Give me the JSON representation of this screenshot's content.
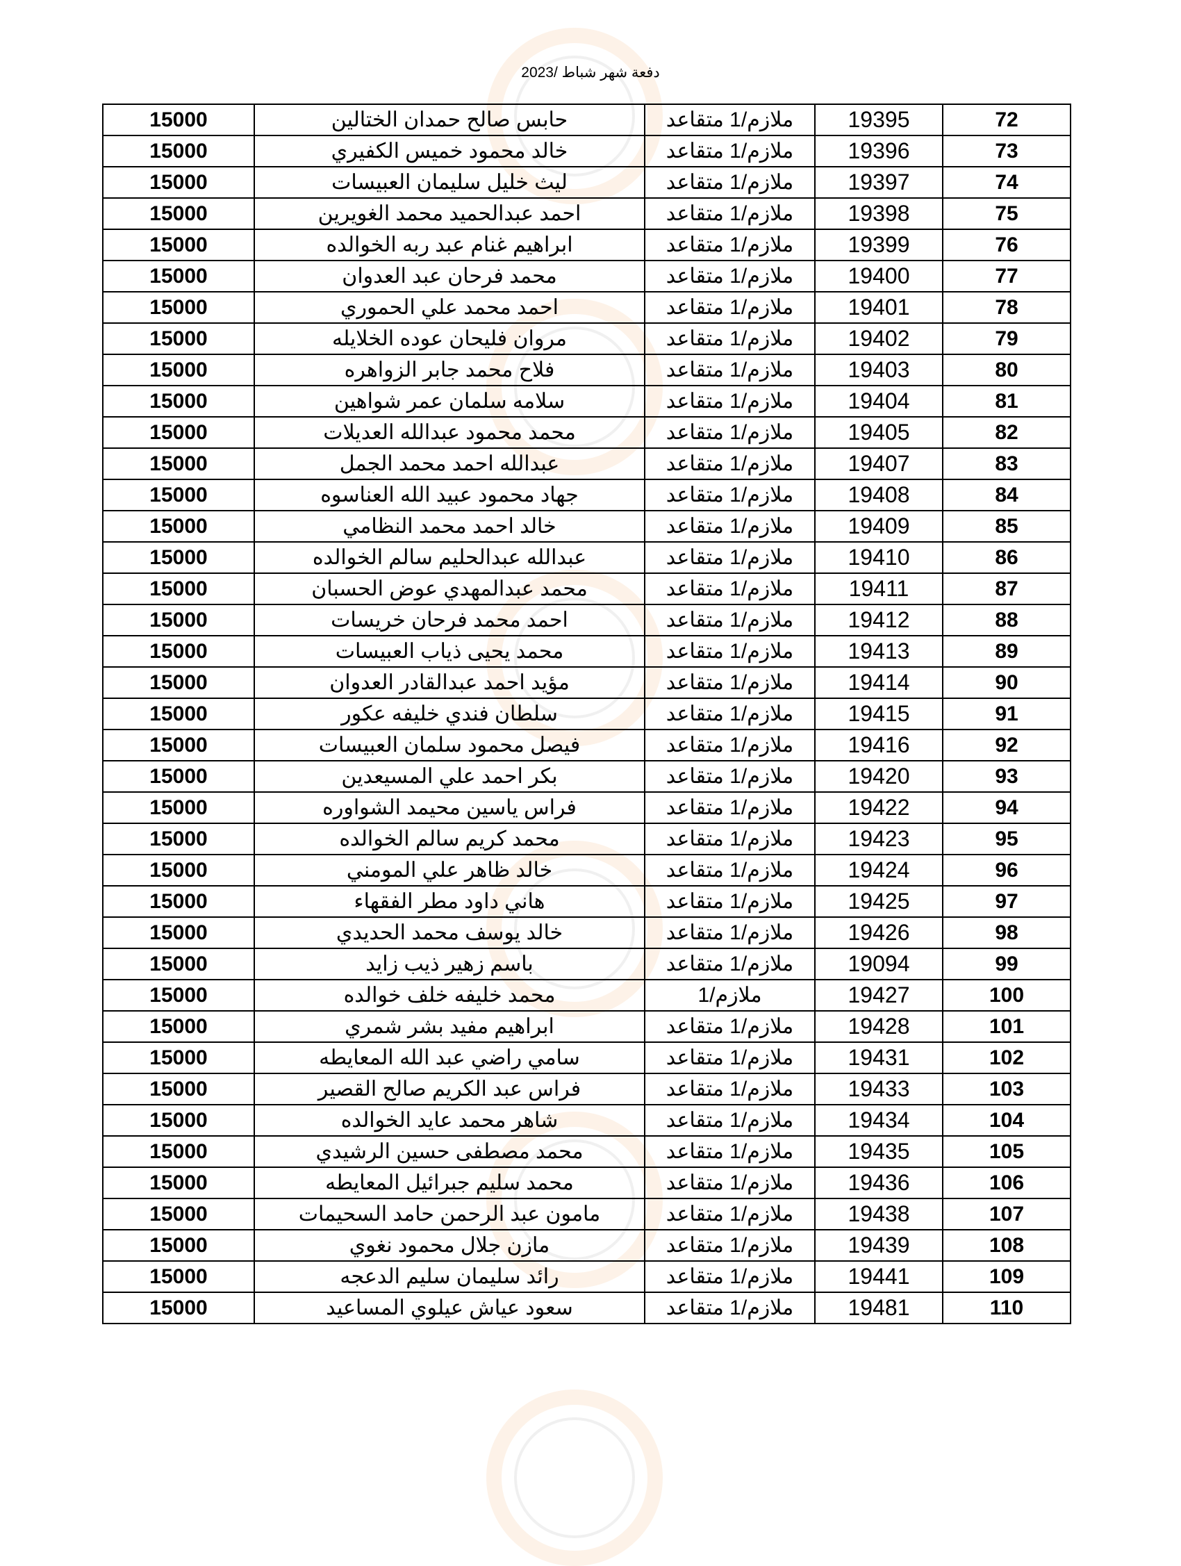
{
  "title": "دفعة شهر شباط /2023",
  "rows": [
    {
      "n": "72",
      "id": "19395",
      "rank": "ملازم/1 متقاعد",
      "name": "حابس صالح حمدان الختالين",
      "amount": "15000"
    },
    {
      "n": "73",
      "id": "19396",
      "rank": "ملازم/1 متقاعد",
      "name": "خالد محمود خميس الكفيري",
      "amount": "15000"
    },
    {
      "n": "74",
      "id": "19397",
      "rank": "ملازم/1 متقاعد",
      "name": "ليث خليل سليمان العبيسات",
      "amount": "15000"
    },
    {
      "n": "75",
      "id": "19398",
      "rank": "ملازم/1 متقاعد",
      "name": "احمد عبدالحميد محمد الغويرين",
      "amount": "15000"
    },
    {
      "n": "76",
      "id": "19399",
      "rank": "ملازم/1 متقاعد",
      "name": "ابراهيم غنام عبد ربه الخوالده",
      "amount": "15000"
    },
    {
      "n": "77",
      "id": "19400",
      "rank": "ملازم/1 متقاعد",
      "name": "محمد فرحان عبد العدوان",
      "amount": "15000"
    },
    {
      "n": "78",
      "id": "19401",
      "rank": "ملازم/1 متقاعد",
      "name": "احمد محمد علي الحموري",
      "amount": "15000"
    },
    {
      "n": "79",
      "id": "19402",
      "rank": "ملازم/1 متقاعد",
      "name": "مروان فليحان عوده الخلايله",
      "amount": "15000"
    },
    {
      "n": "80",
      "id": "19403",
      "rank": "ملازم/1 متقاعد",
      "name": "فلاح محمد جابر الزواهره",
      "amount": "15000"
    },
    {
      "n": "81",
      "id": "19404",
      "rank": "ملازم/1 متقاعد",
      "name": "سلامه سلمان عمر شواهين",
      "amount": "15000"
    },
    {
      "n": "82",
      "id": "19405",
      "rank": "ملازم/1 متقاعد",
      "name": "محمد محمود عبدالله العديلات",
      "amount": "15000"
    },
    {
      "n": "83",
      "id": "19407",
      "rank": "ملازم/1 متقاعد",
      "name": "عبدالله احمد محمد الجمل",
      "amount": "15000"
    },
    {
      "n": "84",
      "id": "19408",
      "rank": "ملازم/1 متقاعد",
      "name": "جهاد محمود عبيد الله العناسوه",
      "amount": "15000"
    },
    {
      "n": "85",
      "id": "19409",
      "rank": "ملازم/1 متقاعد",
      "name": "خالد احمد محمد النظامي",
      "amount": "15000"
    },
    {
      "n": "86",
      "id": "19410",
      "rank": "ملازم/1 متقاعد",
      "name": "عبدالله عبدالحليم سالم الخوالده",
      "amount": "15000"
    },
    {
      "n": "87",
      "id": "19411",
      "rank": "ملازم/1 متقاعد",
      "name": "محمد عبدالمهدي عوض الحسبان",
      "amount": "15000"
    },
    {
      "n": "88",
      "id": "19412",
      "rank": "ملازم/1 متقاعد",
      "name": "احمد محمد فرحان خريسات",
      "amount": "15000"
    },
    {
      "n": "89",
      "id": "19413",
      "rank": "ملازم/1 متقاعد",
      "name": "محمد يحيى ذياب العبيسات",
      "amount": "15000"
    },
    {
      "n": "90",
      "id": "19414",
      "rank": "ملازم/1 متقاعد",
      "name": "مؤيد احمد عبدالقادر العدوان",
      "amount": "15000"
    },
    {
      "n": "91",
      "id": "19415",
      "rank": "ملازم/1 متقاعد",
      "name": "سلطان فندي خليفه عكور",
      "amount": "15000"
    },
    {
      "n": "92",
      "id": "19416",
      "rank": "ملازم/1 متقاعد",
      "name": "فيصل محمود سلمان العبيسات",
      "amount": "15000"
    },
    {
      "n": "93",
      "id": "19420",
      "rank": "ملازم/1 متقاعد",
      "name": "بكر احمد علي المسيعدين",
      "amount": "15000"
    },
    {
      "n": "94",
      "id": "19422",
      "rank": "ملازم/1 متقاعد",
      "name": "فراس ياسين محيمد الشواوره",
      "amount": "15000"
    },
    {
      "n": "95",
      "id": "19423",
      "rank": "ملازم/1 متقاعد",
      "name": "محمد كريم سالم الخوالده",
      "amount": "15000"
    },
    {
      "n": "96",
      "id": "19424",
      "rank": "ملازم/1 متقاعد",
      "name": "خالد ظاهر علي المومني",
      "amount": "15000"
    },
    {
      "n": "97",
      "id": "19425",
      "rank": "ملازم/1 متقاعد",
      "name": "هاني داود مطر الفقهاء",
      "amount": "15000"
    },
    {
      "n": "98",
      "id": "19426",
      "rank": "ملازم/1 متقاعد",
      "name": "خالد يوسف محمد الحديدي",
      "amount": "15000"
    },
    {
      "n": "99",
      "id": "19094",
      "rank": "ملازم/1 متقاعد",
      "name": "باسم زهير ذيب زايد",
      "amount": "15000"
    },
    {
      "n": "100",
      "id": "19427",
      "rank": "ملازم/1",
      "name": "محمد خليفه خلف خوالده",
      "amount": "15000"
    },
    {
      "n": "101",
      "id": "19428",
      "rank": "ملازم/1 متقاعد",
      "name": "ابراهيم مفيد بشر شمري",
      "amount": "15000"
    },
    {
      "n": "102",
      "id": "19431",
      "rank": "ملازم/1 متقاعد",
      "name": "سامي راضي عبد الله المعايطه",
      "amount": "15000"
    },
    {
      "n": "103",
      "id": "19433",
      "rank": "ملازم/1 متقاعد",
      "name": "فراس عبد الكريم صالح القصير",
      "amount": "15000"
    },
    {
      "n": "104",
      "id": "19434",
      "rank": "ملازم/1 متقاعد",
      "name": "شاهر محمد عايد الخوالده",
      "amount": "15000"
    },
    {
      "n": "105",
      "id": "19435",
      "rank": "ملازم/1 متقاعد",
      "name": "محمد مصطفى حسين الرشيدي",
      "amount": "15000"
    },
    {
      "n": "106",
      "id": "19436",
      "rank": "ملازم/1 متقاعد",
      "name": "محمد سليم جبرائيل المعايطه",
      "amount": "15000"
    },
    {
      "n": "107",
      "id": "19438",
      "rank": "ملازم/1 متقاعد",
      "name": "مامون عبد الرحمن حامد السحيمات",
      "amount": "15000"
    },
    {
      "n": "108",
      "id": "19439",
      "rank": "ملازم/1 متقاعد",
      "name": "مازن جلال محمود نغوي",
      "amount": "15000"
    },
    {
      "n": "109",
      "id": "19441",
      "rank": "ملازم/1 متقاعد",
      "name": "رائد سليمان سليم الدعجه",
      "amount": "15000"
    },
    {
      "n": "110",
      "id": "19481",
      "rank": "ملازم/1 متقاعد",
      "name": "سعود عياش عيلوي المساعيد",
      "amount": "15000"
    }
  ]
}
